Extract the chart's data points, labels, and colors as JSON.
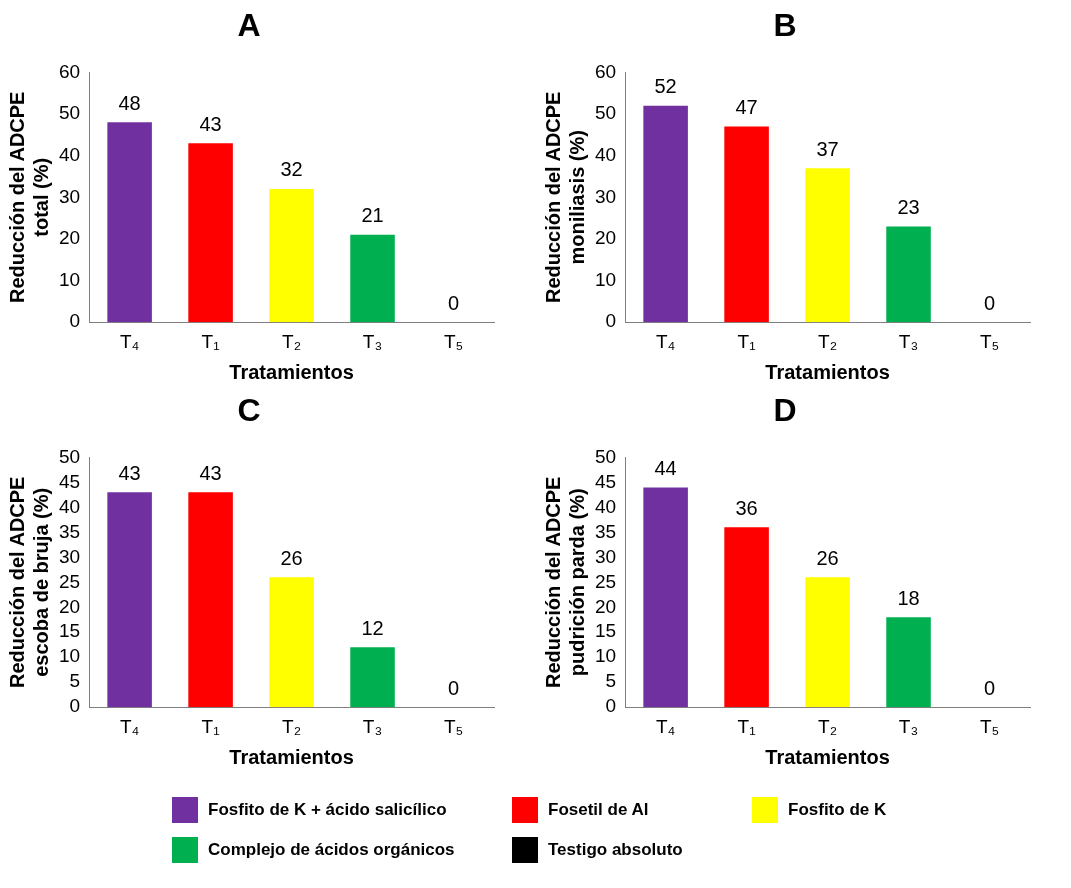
{
  "chart_data": [
    {
      "type": "bar",
      "title": "A",
      "xlabel": "Tratamientos",
      "ylabel": "Reducción del ADCPE total (%)",
      "categories": [
        "T₄",
        "T₁",
        "T₂",
        "T₃",
        "T₅"
      ],
      "ylim": [
        0,
        60
      ],
      "yticks": [
        0,
        10,
        20,
        30,
        40,
        50,
        60
      ],
      "grid": false,
      "data_labels": true,
      "series": [
        {
          "color": "#7030a0",
          "values": [
            48,
            null,
            null,
            null,
            null
          ]
        },
        {
          "color": "#ff0000",
          "values": [
            null,
            43,
            null,
            null,
            null
          ]
        },
        {
          "color": "#ffff00",
          "values": [
            null,
            null,
            32,
            null,
            null
          ]
        },
        {
          "color": "#00b050",
          "values": [
            null,
            null,
            null,
            21,
            null
          ]
        },
        {
          "color": "#000000",
          "values": [
            null,
            null,
            null,
            null,
            0
          ]
        }
      ]
    },
    {
      "type": "bar",
      "title": "B",
      "xlabel": "Tratamientos",
      "ylabel": "Reducción del ADCPE moniliasis (%)",
      "categories": [
        "T₄",
        "T₁",
        "T₂",
        "T₃",
        "T₅"
      ],
      "ylim": [
        0,
        60
      ],
      "yticks": [
        0,
        10,
        20,
        30,
        40,
        50,
        60
      ],
      "grid": false,
      "data_labels": true,
      "series": [
        {
          "color": "#7030a0",
          "values": [
            52,
            null,
            null,
            null,
            null
          ]
        },
        {
          "color": "#ff0000",
          "values": [
            null,
            47,
            null,
            null,
            null
          ]
        },
        {
          "color": "#ffff00",
          "values": [
            null,
            null,
            37,
            null,
            null
          ]
        },
        {
          "color": "#00b050",
          "values": [
            null,
            null,
            null,
            23,
            null
          ]
        },
        {
          "color": "#000000",
          "values": [
            null,
            null,
            null,
            null,
            0
          ]
        }
      ]
    },
    {
      "type": "bar",
      "title": "C",
      "xlabel": "Tratamientos",
      "ylabel": "Reducción del ADCPE escoba de bruja (%)",
      "categories": [
        "T₄",
        "T₁",
        "T₂",
        "T₃",
        "T₅"
      ],
      "ylim": [
        0,
        50
      ],
      "yticks": [
        0,
        5,
        10,
        15,
        20,
        25,
        30,
        35,
        40,
        45,
        50
      ],
      "grid": false,
      "data_labels": true,
      "series": [
        {
          "color": "#7030a0",
          "values": [
            43,
            null,
            null,
            null,
            null
          ]
        },
        {
          "color": "#ff0000",
          "values": [
            null,
            43,
            null,
            null,
            null
          ]
        },
        {
          "color": "#ffff00",
          "values": [
            null,
            null,
            26,
            null,
            null
          ]
        },
        {
          "color": "#00b050",
          "values": [
            null,
            null,
            null,
            12,
            null
          ]
        },
        {
          "color": "#000000",
          "values": [
            null,
            null,
            null,
            null,
            0
          ]
        }
      ]
    },
    {
      "type": "bar",
      "title": "D",
      "xlabel": "Tratamientos",
      "ylabel": "Reducción del ADCPE pudrición parda (%)",
      "categories": [
        "T₄",
        "T₁",
        "T₂",
        "T₃",
        "T₅"
      ],
      "ylim": [
        0,
        50
      ],
      "yticks": [
        0,
        5,
        10,
        15,
        20,
        25,
        30,
        35,
        40,
        45,
        50
      ],
      "grid": false,
      "data_labels": true,
      "legend": "bottom",
      "series": [
        {
          "name": "Fosfito de K + ácido salicílico",
          "color": "#7030a0",
          "values": [
            44,
            null,
            null,
            null,
            null
          ]
        },
        {
          "name": "Fosetil de Al",
          "color": "#ff0000",
          "values": [
            null,
            36,
            null,
            null,
            null
          ]
        },
        {
          "name": "Fosfito de K",
          "color": "#ffff00",
          "values": [
            null,
            null,
            26,
            null,
            null
          ]
        },
        {
          "name": "Complejo de ácidos orgánicos",
          "color": "#00b050",
          "values": [
            null,
            null,
            null,
            18,
            null
          ]
        },
        {
          "name": "Testigo absoluto",
          "color": "#000000",
          "values": [
            null,
            null,
            null,
            null,
            0
          ]
        }
      ]
    }
  ]
}
